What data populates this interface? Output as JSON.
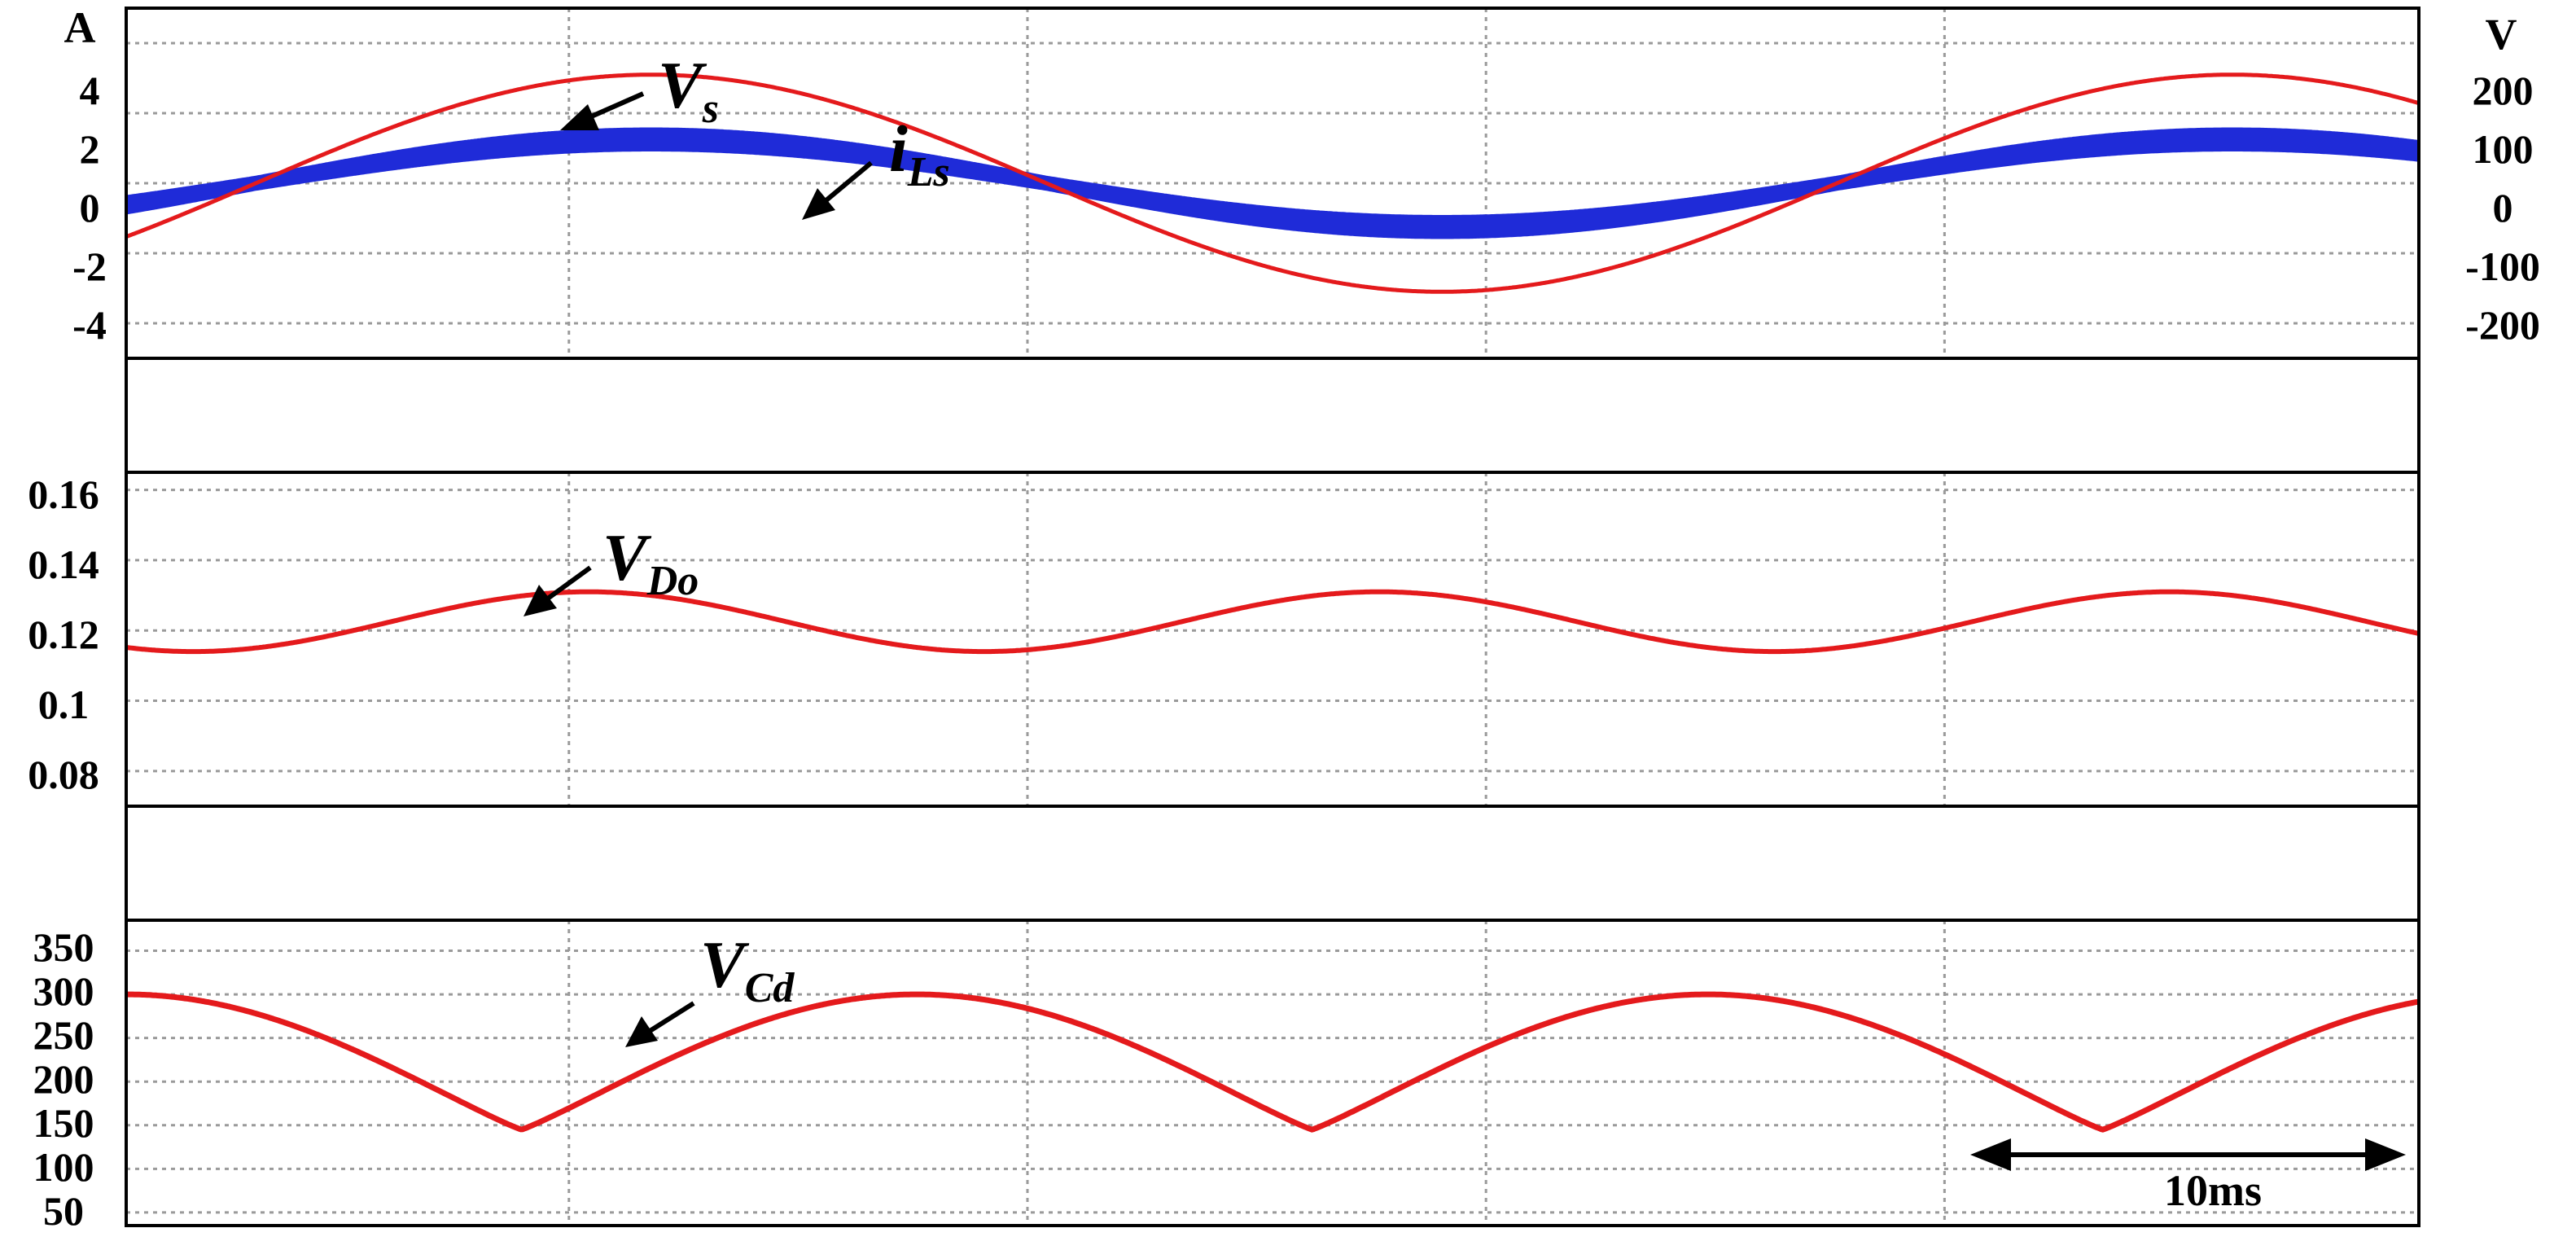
{
  "chart_data": [
    {
      "type": "line",
      "panel": "top",
      "left_axis_unit": "A",
      "right_axis_unit": "V",
      "left_ticks": [
        "4",
        "2",
        "0",
        "-2",
        "-4"
      ],
      "left_tick_values": [
        4,
        2,
        0,
        -2,
        -4
      ],
      "right_ticks": [
        "200",
        "100",
        "0",
        "-100",
        "-200"
      ],
      "ylim_left": [
        -5,
        5
      ],
      "ylim_right": [
        -250,
        250
      ],
      "x_range_ms": [
        0,
        29
      ],
      "series": [
        {
          "name": "Vs",
          "label": "V",
          "sub": "s",
          "color": "#e41a1c",
          "axis": "right",
          "amplitude": 155,
          "frequency_hz": 50,
          "phase_zero_ms": 1.64
        },
        {
          "name": "iLs",
          "label": "i",
          "sub": "Ls",
          "color": "#1f2bd8",
          "axis": "left",
          "amplitude": 1.25,
          "ripple": 0.32,
          "frequency_hz": 50,
          "phase_zero_ms": 1.64
        }
      ]
    },
    {
      "type": "line",
      "panel": "middle",
      "left_ticks": [
        "0.16",
        "0.14",
        "0.12",
        "0.1",
        "0.08"
      ],
      "left_tick_values": [
        0.16,
        0.14,
        0.12,
        0.1,
        0.08
      ],
      "ylim": [
        0.07,
        0.165
      ],
      "series": [
        {
          "name": "VDo",
          "label": "V",
          "sub": "Do",
          "color": "#e41a1c",
          "mean": 0.1225,
          "amplitude": 0.0085,
          "frequency_hz": 100,
          "phase_min_ms": 0.85
        }
      ]
    },
    {
      "type": "line",
      "panel": "bottom",
      "left_ticks": [
        "350",
        "300",
        "250",
        "200",
        "150",
        "100",
        "50"
      ],
      "left_tick_values": [
        350,
        300,
        250,
        200,
        150,
        100,
        50
      ],
      "ylim": [
        35,
        385
      ],
      "series": [
        {
          "name": "VCd",
          "label": "V",
          "sub": "Cd",
          "color": "#e41a1c",
          "max": 300,
          "min": 145,
          "frequency_hz": 100,
          "phase_peak_ms": 0.0
        }
      ]
    }
  ],
  "scale_bar": {
    "label": "10ms",
    "value_ms": 10
  }
}
